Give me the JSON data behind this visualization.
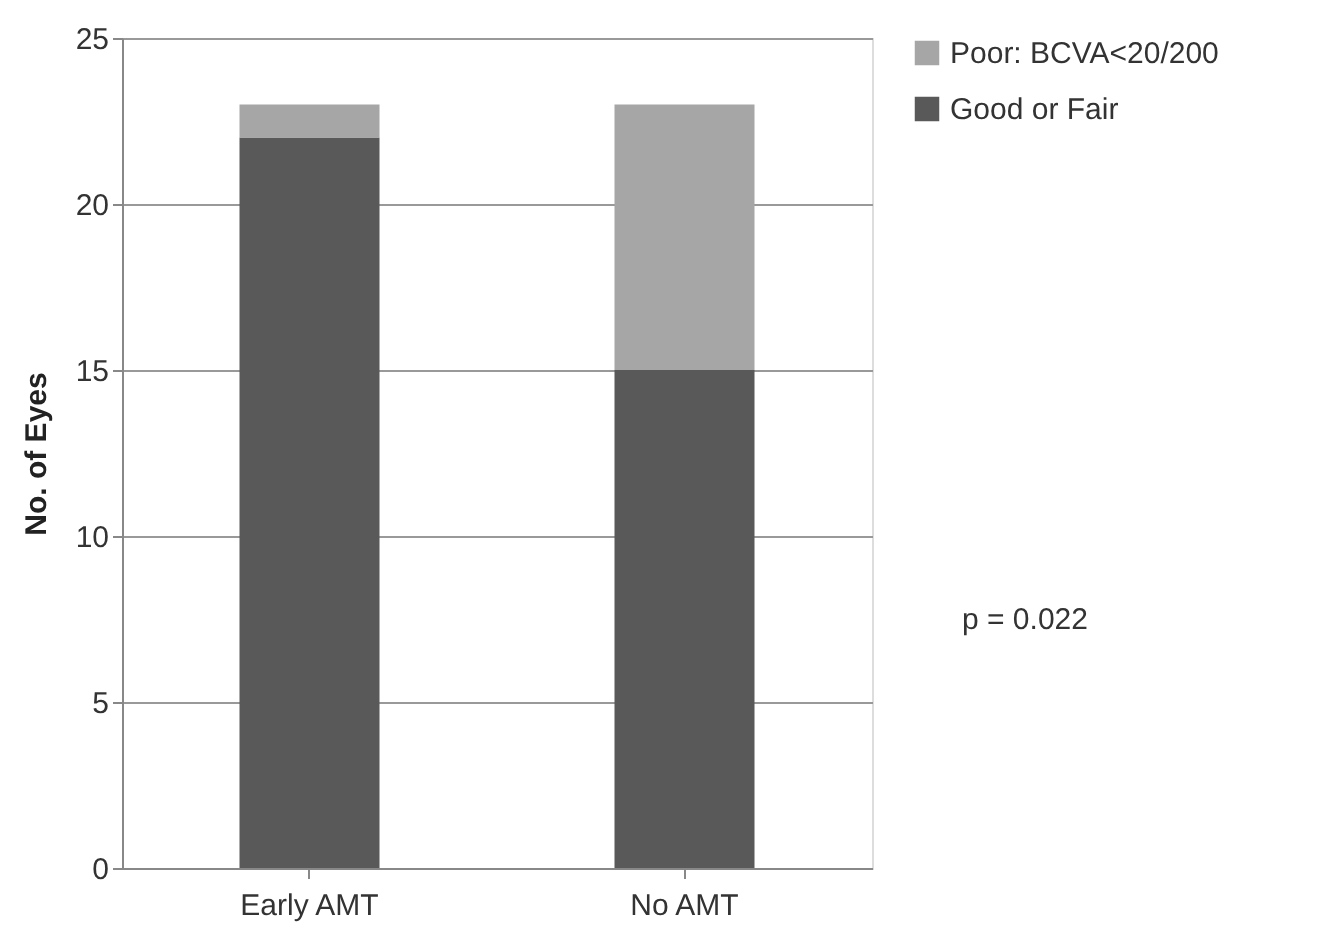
{
  "chart_data": {
    "type": "bar",
    "stacked": true,
    "ylabel": "No. of Eyes",
    "categories": [
      "Early AMT",
      "No AMT"
    ],
    "series": [
      {
        "name": "Good or Fair",
        "color": "#595959",
        "values": [
          22,
          15
        ]
      },
      {
        "name": "Poor: BCVA<20/200",
        "color": "#a6a6a6",
        "values": [
          1,
          8
        ]
      }
    ],
    "ylim": [
      0,
      25
    ],
    "yticks": [
      0,
      5,
      10,
      15,
      20,
      25
    ],
    "grid": "y",
    "legend": "right",
    "annotations": [
      "p = 0.022"
    ]
  }
}
